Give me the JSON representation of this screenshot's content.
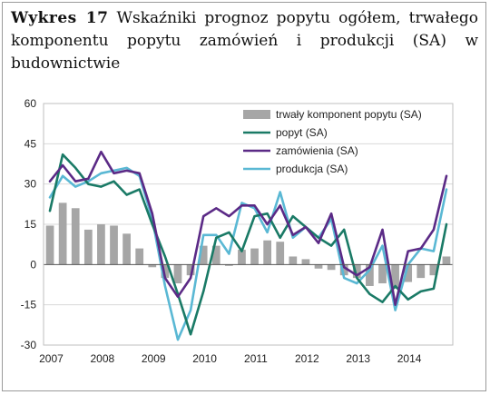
{
  "title": {
    "bold": "Wykres 17",
    "text": "Wskaźniki prognoz popytu ogółem, trwałego komponentu popytu zamówień i produkcji (SA) w budownictwie"
  },
  "chart_data": {
    "type": "line",
    "ylim": [
      -30,
      60
    ],
    "yticks": [
      -30,
      -15,
      0,
      15,
      30,
      45,
      60
    ],
    "xticks": [
      "2007",
      "2008",
      "2009",
      "2010",
      "2011",
      "2012",
      "2013",
      "2014"
    ],
    "x": [
      "2007Q1",
      "2007Q2",
      "2007Q3",
      "2007Q4",
      "2008Q1",
      "2008Q2",
      "2008Q3",
      "2008Q4",
      "2009Q1",
      "2009Q2",
      "2009Q3",
      "2009Q4",
      "2010Q1",
      "2010Q2",
      "2010Q3",
      "2010Q4",
      "2011Q1",
      "2011Q2",
      "2011Q3",
      "2011Q4",
      "2012Q1",
      "2012Q2",
      "2012Q3",
      "2012Q4",
      "2013Q1",
      "2013Q2",
      "2013Q3",
      "2013Q4",
      "2014Q1",
      "2014Q2",
      "2014Q3",
      "2014Q4"
    ],
    "grid": true,
    "legend_position": "top-right",
    "colors": {
      "bars": "#a6a6a6",
      "popyt": "#1a7a66",
      "zamowienia": "#5b2a86",
      "produkcja": "#5ab8d4"
    },
    "series": [
      {
        "name": "trwały komponent popytu (SA)",
        "kind": "bar",
        "values": [
          14.5,
          23,
          21,
          13,
          15,
          14.5,
          11.5,
          6,
          -1,
          -5,
          -7,
          -4,
          7,
          7,
          -0.5,
          5.5,
          6,
          9,
          8.5,
          3,
          2,
          -1.5,
          -2,
          -4,
          -5,
          -8,
          -7,
          -9,
          -6.5,
          -5,
          -4,
          3
        ]
      },
      {
        "name": "popyt (SA)",
        "kind": "line",
        "values": [
          20,
          41,
          36,
          30,
          29,
          31,
          26,
          28,
          15,
          3,
          -11,
          -26,
          -10,
          10,
          12,
          5,
          18,
          19,
          10,
          18,
          14,
          10,
          7,
          13,
          -5,
          -11,
          -14,
          -8,
          -13,
          -10,
          -9,
          15
        ]
      },
      {
        "name": "zamówienia (SA)",
        "kind": "line",
        "values": [
          31,
          37,
          31,
          32,
          42,
          34,
          35,
          34,
          19,
          -5,
          -12,
          -5,
          18,
          21,
          18,
          22,
          22,
          15,
          22,
          11,
          14,
          8,
          19,
          -1,
          -4,
          -1,
          13,
          -15,
          5,
          6,
          13,
          33
        ]
      },
      {
        "name": "produkcja (SA)",
        "kind": "line",
        "values": [
          25,
          33,
          29,
          31,
          34,
          35,
          36,
          33,
          17,
          -8,
          -28,
          -17,
          11,
          11,
          4,
          23,
          21,
          12,
          27,
          10,
          14,
          10,
          17,
          -5,
          -7,
          -2,
          7,
          -17,
          0,
          6,
          5,
          28
        ]
      }
    ]
  }
}
